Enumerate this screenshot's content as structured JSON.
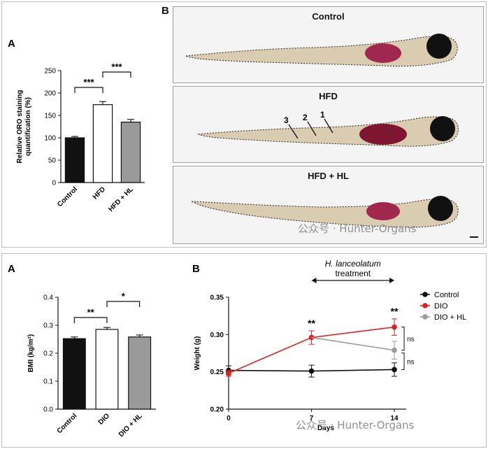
{
  "top_figure": {
    "panel_label_a": "A",
    "panel_label_b": "B",
    "fish_panels": [
      {
        "title": "Control"
      },
      {
        "title": "HFD",
        "markers": [
          "3",
          "2",
          "1"
        ]
      },
      {
        "title": "HFD + HL"
      }
    ],
    "watermark": "公众号 · Hunter-Organs"
  },
  "bottom_figure": {
    "panel_label_a": "A",
    "panel_label_b": "B",
    "treatment_label_italic": "H. lanceolatum",
    "treatment_label": "treatment",
    "watermark": "公众号 · Hunter-Organs",
    "colors": {
      "control": "#111111",
      "dio": "#e02020",
      "dio_hl": "#9a9a9a",
      "bar_grey": "#9a9a9a"
    }
  },
  "chart_data": [
    {
      "type": "bar",
      "id": "oro",
      "categories": [
        "Control",
        "HFD",
        "HFD + HL"
      ],
      "values": [
        100,
        174,
        135
      ],
      "errors": [
        3,
        7,
        6
      ],
      "fills": [
        "#111111",
        "#ffffff",
        "#9a9a9a"
      ],
      "ylabel": "Relative ORO staining quantification (%)",
      "ylabel_lines": [
        "Relative ORO staining",
        "quantification (%)"
      ],
      "ylim": [
        0,
        250
      ],
      "yticks": [
        0,
        50,
        100,
        150,
        200,
        250
      ],
      "significance": [
        {
          "from": 0,
          "to": 1,
          "label": "***"
        },
        {
          "from": 1,
          "to": 2,
          "label": "***"
        }
      ]
    },
    {
      "type": "bar",
      "id": "bmi",
      "categories": [
        "Control",
        "DIO",
        "DIO + HL"
      ],
      "values": [
        0.252,
        0.285,
        0.258
      ],
      "errors": [
        0.006,
        0.007,
        0.007
      ],
      "fills": [
        "#111111",
        "#ffffff",
        "#9a9a9a"
      ],
      "ylabel": "BMI (kg/m²)",
      "ylim": [
        0.0,
        0.4
      ],
      "yticks": [
        "0.0",
        "0.1",
        "0.2",
        "0.3",
        "0.4"
      ],
      "significance": [
        {
          "from": 0,
          "to": 1,
          "label": "**"
        },
        {
          "from": 1,
          "to": 2,
          "label": "*"
        }
      ]
    },
    {
      "type": "line",
      "id": "weight",
      "x": [
        0,
        7,
        14
      ],
      "xticks": [
        "0",
        "7",
        "14"
      ],
      "xlabel": "Days",
      "ylabel": "Weight (g)",
      "ylim": [
        0.2,
        0.35
      ],
      "yticks": [
        "0.20",
        "0.25",
        "0.30",
        "0.35"
      ],
      "legend_position": "top-right",
      "series": [
        {
          "name": "Control",
          "color": "#111111",
          "values": [
            0.252,
            0.251,
            0.253
          ],
          "errors": [
            0.006,
            0.008,
            0.009
          ]
        },
        {
          "name": "DIO",
          "color": "#e02020",
          "values": [
            0.248,
            0.296,
            0.31
          ],
          "errors": [
            0.004,
            0.009,
            0.011
          ]
        },
        {
          "name": "DIO + HL",
          "color": "#9a9a9a",
          "values": [
            0.25,
            0.296,
            0.279
          ],
          "errors": [
            0.005,
            0.008,
            0.012
          ]
        }
      ],
      "annotations": [
        {
          "x": 7,
          "label": "**"
        },
        {
          "x": 14,
          "label": "**"
        }
      ],
      "right_brackets": [
        "ns",
        "ns"
      ]
    }
  ]
}
